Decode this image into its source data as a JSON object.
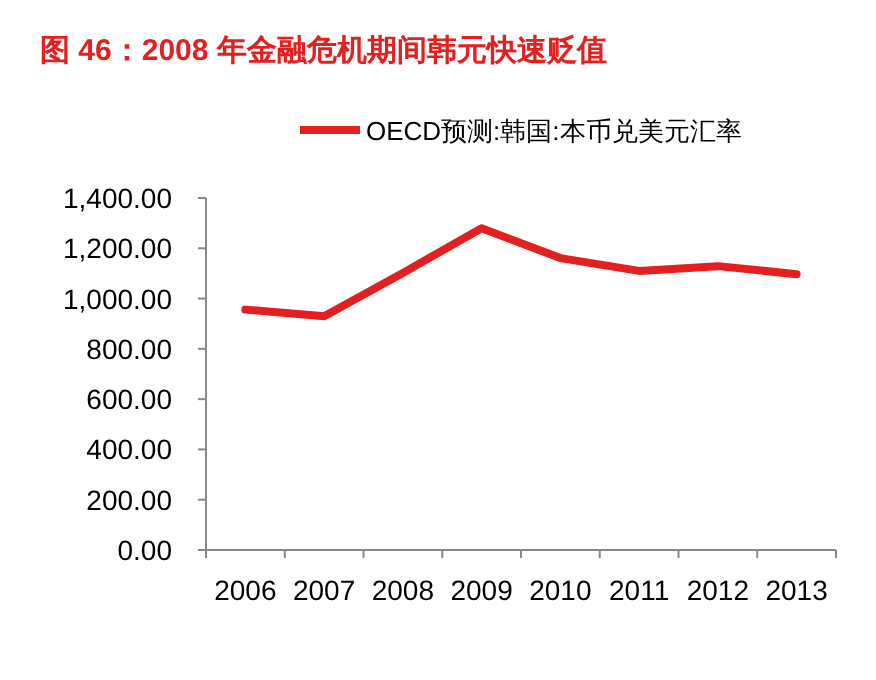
{
  "chart_data": {
    "type": "line",
    "title": "图 46：2008 年金融危机期间韩元快速贬值",
    "categories": [
      "2006",
      "2007",
      "2008",
      "2009",
      "2010",
      "2011",
      "2012",
      "2013"
    ],
    "series": [
      {
        "name": "OECD预测:韩国:本币兑美元汇率",
        "color": "#e3201f",
        "values": [
          956,
          930,
          1102,
          1280,
          1161,
          1110,
          1129,
          1097
        ]
      }
    ],
    "ylim": [
      0,
      1400
    ],
    "yticks": [
      {
        "value": 0,
        "label": "0.00"
      },
      {
        "value": 200,
        "label": "200.00"
      },
      {
        "value": 400,
        "label": "400.00"
      },
      {
        "value": 600,
        "label": "600.00"
      },
      {
        "value": 800,
        "label": "800.00"
      },
      {
        "value": 1000,
        "label": "1,000.00"
      },
      {
        "value": 1200,
        "label": "1,200.00"
      },
      {
        "value": 1400,
        "label": "1,400.00"
      }
    ],
    "legend": "top",
    "grid": false
  }
}
